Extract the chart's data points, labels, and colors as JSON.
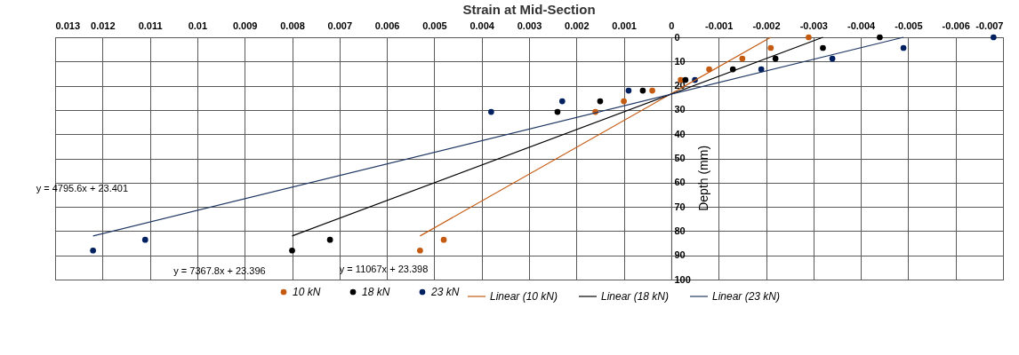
{
  "chart_data": {
    "type": "scatter",
    "title": "Strain at Mid-Section",
    "ylabel": "Depth (mm)",
    "xlim": [
      0.013,
      -0.007
    ],
    "xticks": [
      0.013,
      0.012,
      0.011,
      0.01,
      0.009,
      0.008,
      0.007,
      0.006,
      0.005,
      0.004,
      0.003,
      0.002,
      0.001,
      0,
      -0.001,
      -0.002,
      -0.003,
      -0.004,
      -0.005,
      -0.006,
      -0.007
    ],
    "ylim": [
      100,
      0
    ],
    "yticks": [
      0,
      10,
      20,
      30,
      40,
      50,
      60,
      70,
      80,
      90,
      100
    ],
    "grid": true,
    "legend": "bottom",
    "marker": "circle",
    "annotations": [
      "y = 4795.6x + 23.401",
      "y = 7367.8x + 23.396",
      "y = 11067x + 23.398"
    ],
    "series": [
      {
        "name": "10 kN",
        "color": "#c55a11",
        "x": [
          -0.0029,
          -0.0021,
          -0.0015,
          -0.0008,
          -0.0002,
          0.0004,
          0.001,
          0.0016,
          0.0048,
          0.0053
        ],
        "values": [
          0,
          4.4,
          8.8,
          13.2,
          17.6,
          22,
          26.4,
          30.8,
          83.6,
          88
        ]
      },
      {
        "name": "18 kN",
        "color": "#000000",
        "x": [
          -0.0044,
          -0.0032,
          -0.0022,
          -0.0013,
          -0.0003,
          0.0006,
          0.0015,
          0.0024,
          0.0072,
          0.008
        ],
        "values": [
          0,
          4.4,
          8.8,
          13.2,
          17.6,
          22,
          26.4,
          30.8,
          83.6,
          88
        ]
      },
      {
        "name": "23 kN",
        "color": "#002060",
        "x": [
          -0.0068,
          -0.0049,
          -0.0034,
          -0.0019,
          -0.0005,
          0.0009,
          0.0023,
          0.0038,
          0.0111,
          0.0122
        ],
        "values": [
          0,
          4.4,
          8.8,
          13.2,
          17.6,
          22,
          26.4,
          30.8,
          83.6,
          88
        ]
      },
      {
        "type": "line",
        "marker": "none",
        "name": "Linear (10 kN)",
        "color": "#c55a11",
        "x": [
          0.0053,
          -0.0021
        ],
        "values": [
          82,
          0
        ]
      },
      {
        "type": "line",
        "marker": "none",
        "name": "Linear (18 kN)",
        "color": "#000000",
        "x": [
          0.008,
          -0.0032
        ],
        "values": [
          82,
          0
        ]
      },
      {
        "type": "line",
        "marker": "none",
        "name": "Linear (23 kN)",
        "color": "#203864",
        "x": [
          0.0122,
          -0.0049
        ],
        "values": [
          82,
          0
        ]
      }
    ]
  }
}
